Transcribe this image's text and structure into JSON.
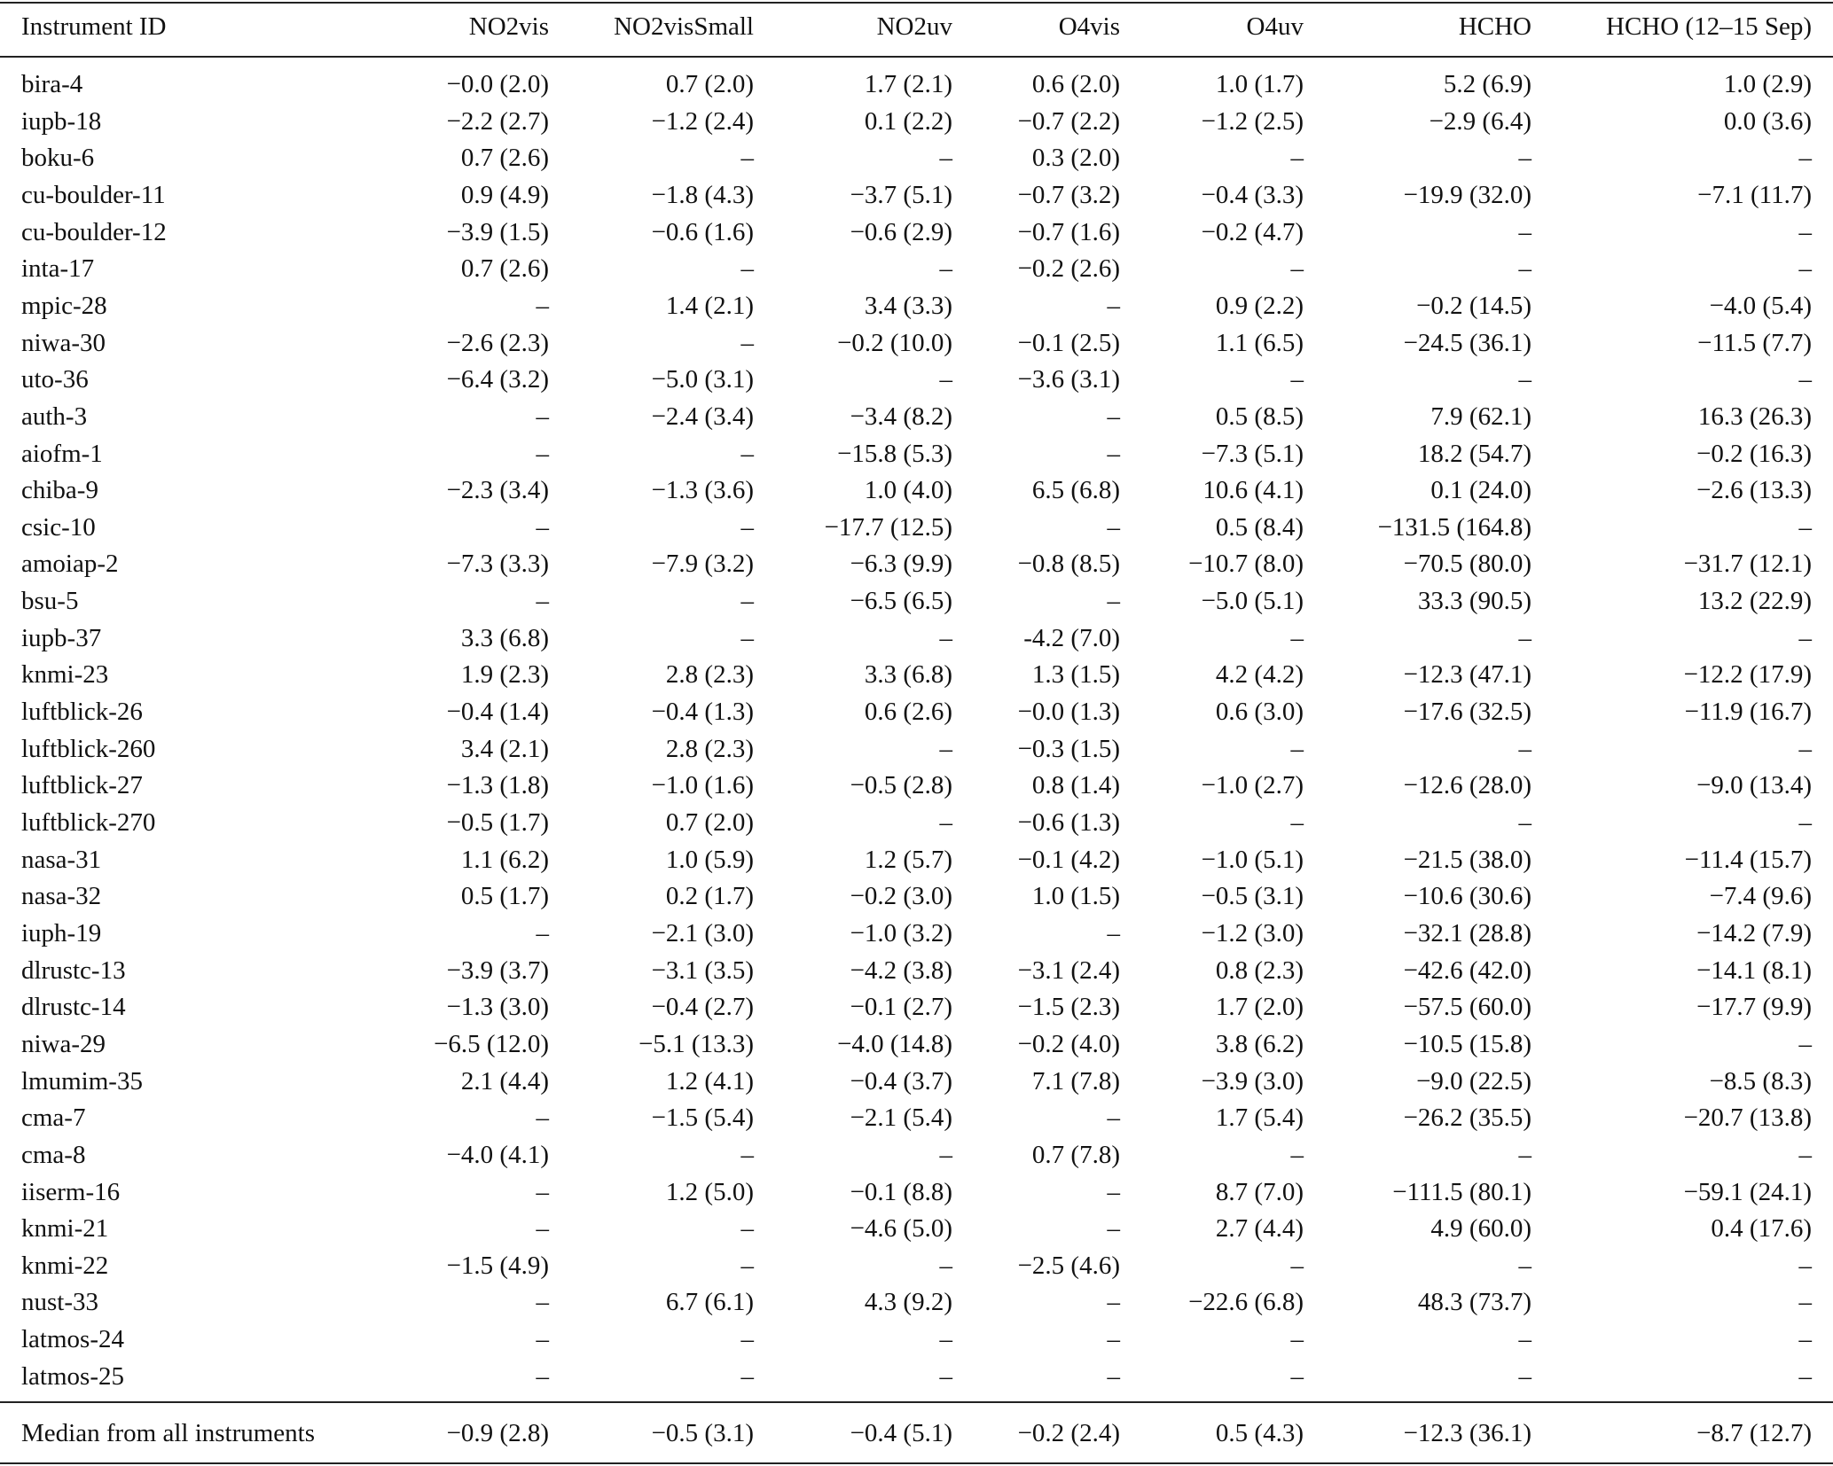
{
  "table": {
    "header": [
      "Instrument ID",
      "NO2vis",
      "NO2visSmall",
      "NO2uv",
      "O4vis",
      "O4uv",
      "HCHO",
      "HCHO (12–15 Sep)"
    ],
    "rows": [
      [
        "bira-4",
        "−0.0 (2.0)",
        "0.7 (2.0)",
        "1.7 (2.1)",
        "0.6 (2.0)",
        "1.0 (1.7)",
        "5.2 (6.9)",
        "1.0 (2.9)"
      ],
      [
        "iupb-18",
        "−2.2 (2.7)",
        "−1.2 (2.4)",
        "0.1 (2.2)",
        "−0.7 (2.2)",
        "−1.2 (2.5)",
        "−2.9 (6.4)",
        "0.0 (3.6)"
      ],
      [
        "boku-6",
        "0.7 (2.6)",
        "–",
        "–",
        "0.3 (2.0)",
        "–",
        "–",
        "–"
      ],
      [
        "cu-boulder-11",
        "0.9 (4.9)",
        "−1.8 (4.3)",
        "−3.7 (5.1)",
        "−0.7 (3.2)",
        "−0.4 (3.3)",
        "−19.9 (32.0)",
        "−7.1 (11.7)"
      ],
      [
        "cu-boulder-12",
        "−3.9 (1.5)",
        "−0.6 (1.6)",
        "−0.6 (2.9)",
        "−0.7 (1.6)",
        "−0.2 (4.7)",
        "–",
        "–"
      ],
      [
        "inta-17",
        "0.7 (2.6)",
        "–",
        "–",
        "−0.2 (2.6)",
        "–",
        "–",
        "–"
      ],
      [
        "mpic-28",
        "–",
        "1.4 (2.1)",
        "3.4 (3.3)",
        "–",
        "0.9 (2.2)",
        "−0.2 (14.5)",
        "−4.0 (5.4)"
      ],
      [
        "niwa-30",
        "−2.6 (2.3)",
        "–",
        "−0.2 (10.0)",
        "−0.1 (2.5)",
        "1.1 (6.5)",
        "−24.5 (36.1)",
        "−11.5 (7.7)"
      ],
      [
        "uto-36",
        "−6.4 (3.2)",
        "−5.0 (3.1)",
        "–",
        "−3.6 (3.1)",
        "–",
        "–",
        "–"
      ],
      [
        "auth-3",
        "–",
        "−2.4 (3.4)",
        "−3.4 (8.2)",
        "–",
        "0.5 (8.5)",
        "7.9 (62.1)",
        "16.3 (26.3)"
      ],
      [
        "aiofm-1",
        "–",
        "–",
        "−15.8 (5.3)",
        "–",
        "−7.3 (5.1)",
        "18.2 (54.7)",
        "−0.2 (16.3)"
      ],
      [
        "chiba-9",
        "−2.3 (3.4)",
        "−1.3 (3.6)",
        "1.0 (4.0)",
        "6.5 (6.8)",
        "10.6 (4.1)",
        "0.1 (24.0)",
        "−2.6 (13.3)"
      ],
      [
        "csic-10",
        "–",
        "–",
        "−17.7 (12.5)",
        "–",
        "0.5 (8.4)",
        "−131.5 (164.8)",
        "–"
      ],
      [
        "amoiap-2",
        "−7.3 (3.3)",
        "−7.9 (3.2)",
        "−6.3 (9.9)",
        "−0.8 (8.5)",
        "−10.7 (8.0)",
        "−70.5 (80.0)",
        "−31.7 (12.1)"
      ],
      [
        "bsu-5",
        "–",
        "–",
        "−6.5 (6.5)",
        "–",
        "−5.0 (5.1)",
        "33.3 (90.5)",
        "13.2 (22.9)"
      ],
      [
        "iupb-37",
        "3.3 (6.8)",
        "–",
        "–",
        "-4.2 (7.0)",
        "–",
        "–",
        "–"
      ],
      [
        "knmi-23",
        "1.9 (2.3)",
        "2.8 (2.3)",
        "3.3 (6.8)",
        "1.3 (1.5)",
        "4.2 (4.2)",
        "−12.3 (47.1)",
        "−12.2 (17.9)"
      ],
      [
        "luftblick-26",
        "−0.4 (1.4)",
        "−0.4 (1.3)",
        "0.6 (2.6)",
        "−0.0 (1.3)",
        "0.6 (3.0)",
        "−17.6 (32.5)",
        "−11.9 (16.7)"
      ],
      [
        "luftblick-260",
        "3.4 (2.1)",
        "2.8 (2.3)",
        "–",
        "−0.3 (1.5)",
        "–",
        "–",
        "–"
      ],
      [
        "luftblick-27",
        "−1.3 (1.8)",
        "−1.0 (1.6)",
        "−0.5 (2.8)",
        "0.8 (1.4)",
        "−1.0 (2.7)",
        "−12.6 (28.0)",
        "−9.0 (13.4)"
      ],
      [
        "luftblick-270",
        "−0.5 (1.7)",
        "0.7 (2.0)",
        "–",
        "−0.6 (1.3)",
        "–",
        "–",
        "–"
      ],
      [
        "nasa-31",
        "1.1 (6.2)",
        "1.0 (5.9)",
        "1.2 (5.7)",
        "−0.1 (4.2)",
        "−1.0 (5.1)",
        "−21.5 (38.0)",
        "−11.4 (15.7)"
      ],
      [
        "nasa-32",
        "0.5 (1.7)",
        "0.2 (1.7)",
        "−0.2 (3.0)",
        "1.0 (1.5)",
        "−0.5 (3.1)",
        "−10.6 (30.6)",
        "−7.4 (9.6)"
      ],
      [
        "iuph-19",
        "–",
        "−2.1 (3.0)",
        "−1.0 (3.2)",
        "–",
        "−1.2 (3.0)",
        "−32.1 (28.8)",
        "−14.2 (7.9)"
      ],
      [
        "dlrustc-13",
        "−3.9 (3.7)",
        "−3.1 (3.5)",
        "−4.2 (3.8)",
        "−3.1 (2.4)",
        "0.8 (2.3)",
        "−42.6 (42.0)",
        "−14.1 (8.1)"
      ],
      [
        "dlrustc-14",
        "−1.3 (3.0)",
        "−0.4 (2.7)",
        "−0.1 (2.7)",
        "−1.5 (2.3)",
        "1.7 (2.0)",
        "−57.5 (60.0)",
        "−17.7 (9.9)"
      ],
      [
        "niwa-29",
        "−6.5 (12.0)",
        "−5.1 (13.3)",
        "−4.0 (14.8)",
        "−0.2 (4.0)",
        "3.8 (6.2)",
        "−10.5 (15.8)",
        "–"
      ],
      [
        "lmumim-35",
        "2.1 (4.4)",
        "1.2 (4.1)",
        "−0.4 (3.7)",
        "7.1 (7.8)",
        "−3.9 (3.0)",
        "−9.0 (22.5)",
        "−8.5 (8.3)"
      ],
      [
        "cma-7",
        "–",
        "−1.5 (5.4)",
        "−2.1 (5.4)",
        "–",
        "1.7 (5.4)",
        "−26.2 (35.5)",
        "−20.7 (13.8)"
      ],
      [
        "cma-8",
        "−4.0 (4.1)",
        "–",
        "–",
        "0.7 (7.8)",
        "–",
        "–",
        "–"
      ],
      [
        "iiserm-16",
        "–",
        "1.2 (5.0)",
        "−0.1 (8.8)",
        "–",
        "8.7 (7.0)",
        "−111.5 (80.1)",
        "−59.1 (24.1)"
      ],
      [
        "knmi-21",
        "–",
        "–",
        "−4.6 (5.0)",
        "–",
        "2.7 (4.4)",
        "4.9 (60.0)",
        "0.4 (17.6)"
      ],
      [
        "knmi-22",
        "−1.5 (4.9)",
        "–",
        "–",
        "−2.5 (4.6)",
        "–",
        "–",
        "–"
      ],
      [
        "nust-33",
        "–",
        "6.7 (6.1)",
        "4.3 (9.2)",
        "–",
        "−22.6 (6.8)",
        "48.3 (73.7)",
        "–"
      ],
      [
        "latmos-24",
        "–",
        "–",
        "–",
        "–",
        "–",
        "–",
        "–"
      ],
      [
        "latmos-25",
        "–",
        "–",
        "–",
        "–",
        "–",
        "–",
        "–"
      ]
    ],
    "footer": [
      "Median from all instruments",
      "−0.9 (2.8)",
      "−0.5 (3.1)",
      "−0.4 (5.1)",
      "−0.2 (2.4)",
      "0.5 (4.3)",
      "−12.3 (36.1)",
      "−8.7 (12.7)"
    ]
  }
}
